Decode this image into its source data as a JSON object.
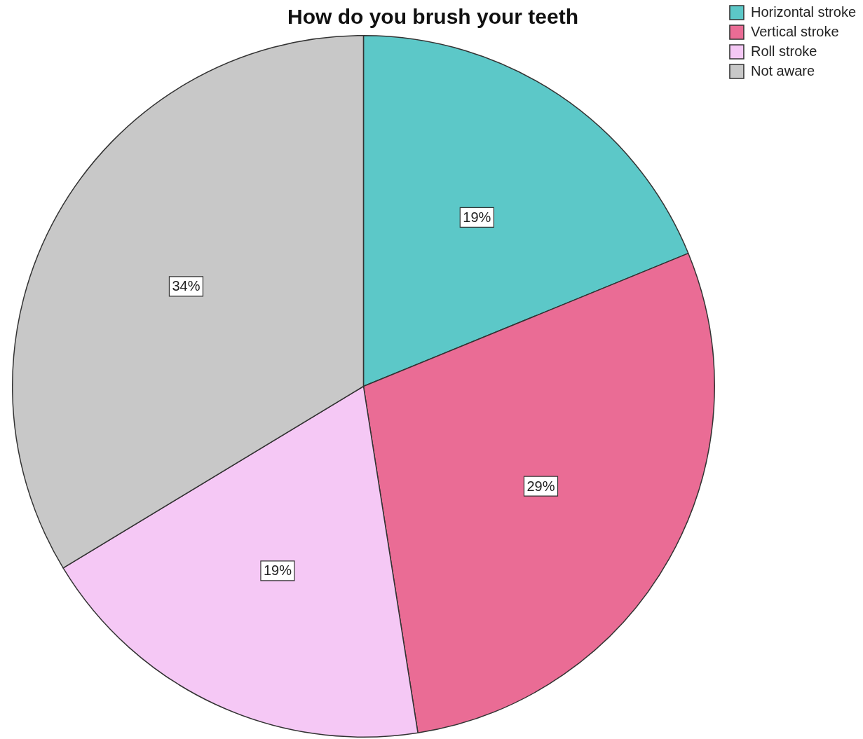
{
  "chart_data": {
    "type": "pie",
    "title": "How do you brush your teeth",
    "categories": [
      "Horizontal stroke",
      "Vertical stroke",
      "Roll stroke",
      "Not aware"
    ],
    "values": [
      19,
      29,
      19,
      34
    ],
    "colors": [
      "#5cc8c8",
      "#ea6c95",
      "#f5c8f5",
      "#c8c8c8"
    ],
    "value_labels": [
      "19%",
      "29%",
      "19%",
      "34%"
    ],
    "legend": "top right"
  }
}
